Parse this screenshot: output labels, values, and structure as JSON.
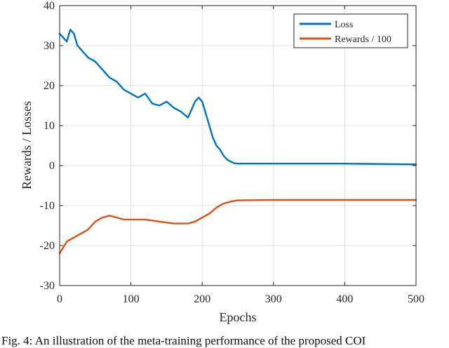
{
  "chart_data": {
    "type": "line",
    "xlabel": "Epochs",
    "ylabel": "Rewards / Losses",
    "xlim": [
      0,
      500
    ],
    "ylim": [
      -30,
      40
    ],
    "xticks": [
      0,
      100,
      200,
      300,
      400,
      500
    ],
    "yticks": [
      -30,
      -20,
      -10,
      0,
      10,
      20,
      30,
      40
    ],
    "grid": true,
    "legend_position": "top-right",
    "series": [
      {
        "name": "Loss",
        "color": "#0072BD",
        "x": [
          0,
          5,
          10,
          15,
          20,
          25,
          30,
          40,
          50,
          60,
          70,
          80,
          90,
          100,
          110,
          120,
          130,
          140,
          150,
          160,
          170,
          180,
          185,
          190,
          195,
          200,
          205,
          210,
          215,
          220,
          225,
          230,
          235,
          240,
          245,
          250,
          260,
          300,
          400,
          500
        ],
        "y": [
          33,
          32,
          31,
          34,
          33,
          30,
          29,
          27,
          26,
          24,
          22,
          21,
          19,
          18,
          17,
          18,
          15.5,
          15,
          16,
          14.5,
          13.5,
          12,
          14,
          16,
          17,
          16,
          13,
          10,
          7,
          5,
          4,
          2.5,
          1.5,
          1,
          0.6,
          0.5,
          0.5,
          0.5,
          0.5,
          0.3
        ]
      },
      {
        "name": "Rewards / 100",
        "color": "#D95319",
        "x": [
          0,
          10,
          20,
          30,
          40,
          50,
          60,
          70,
          80,
          90,
          100,
          120,
          140,
          160,
          180,
          190,
          200,
          210,
          220,
          230,
          240,
          250,
          300,
          400,
          500
        ],
        "y": [
          -22,
          -19,
          -18,
          -17,
          -16,
          -14,
          -13,
          -12.5,
          -13,
          -13.5,
          -13.5,
          -13.5,
          -14,
          -14.5,
          -14.5,
          -14,
          -13,
          -12,
          -10.5,
          -9.5,
          -9,
          -8.7,
          -8.6,
          -8.6,
          -8.6
        ]
      }
    ]
  },
  "caption": "Fig. 4: An illustration of the meta-training performance of the proposed COI"
}
